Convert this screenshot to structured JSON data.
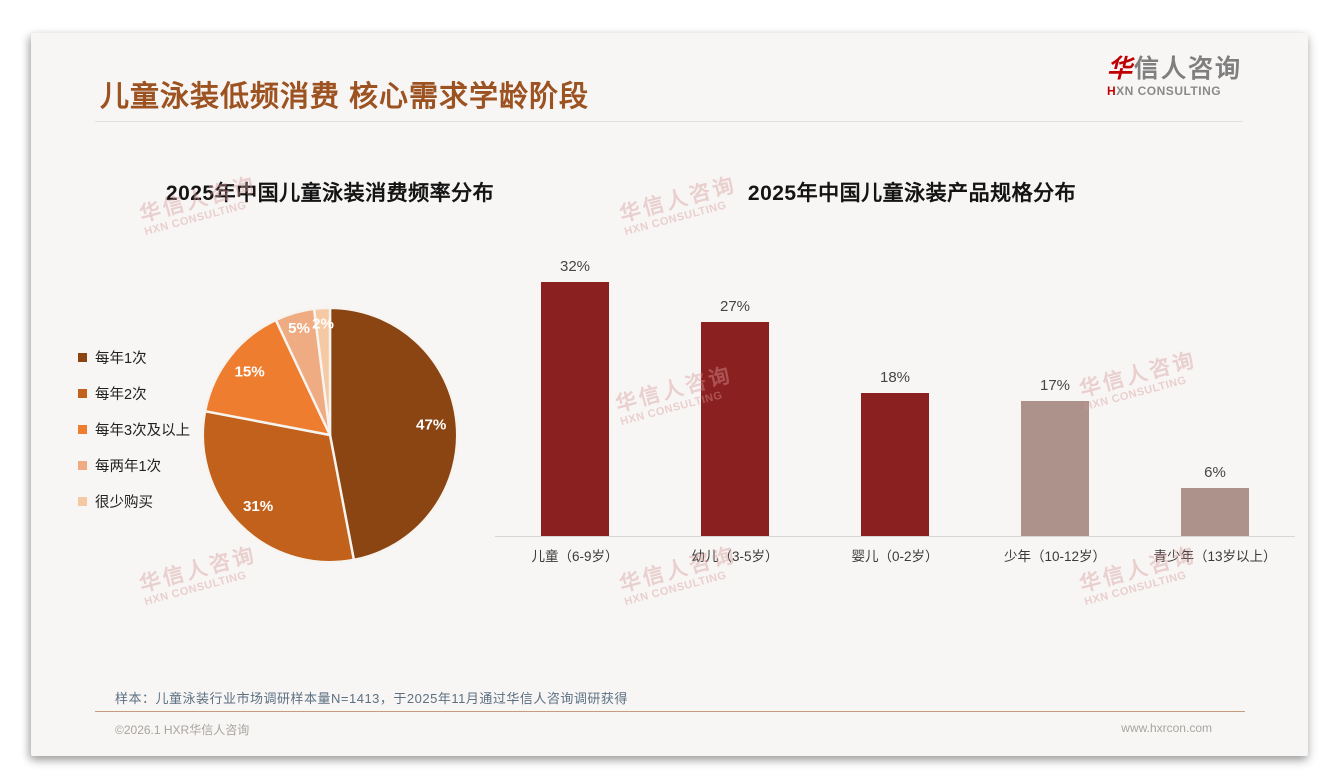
{
  "header": {
    "title": "儿童泳装低频消费 核心需求学龄阶段",
    "logo": {
      "cn_first": "华",
      "cn_rest": "信人咨询",
      "en_first": "H",
      "en_rest": "XN CONSULTING"
    },
    "accent_color": "#C00000"
  },
  "watermark": {
    "line1": "华信人咨询",
    "line2": "HXN CONSULTING"
  },
  "chart_data": [
    {
      "type": "pie",
      "title": "2025年中国儿童泳装消费频率分布",
      "legend_position": "left",
      "slices": [
        {
          "label": "每年1次",
          "value": 47,
          "pct_label": "47%",
          "color": "#8A4513"
        },
        {
          "label": "每年2次",
          "value": 31,
          "pct_label": "31%",
          "color": "#C2611B"
        },
        {
          "label": "每年3次及以上",
          "value": 15,
          "pct_label": "15%",
          "color": "#EE7D2F"
        },
        {
          "label": "每两年1次",
          "value": 5,
          "pct_label": "5%",
          "color": "#EFAB82"
        },
        {
          "label": "很少购买",
          "value": 2,
          "pct_label": "2%",
          "color": "#F4C9A4"
        }
      ]
    },
    {
      "type": "bar",
      "title": "2025年中国儿童泳装产品规格分布",
      "categories": [
        "儿童（6-9岁）",
        "幼儿（3-5岁）",
        "婴儿（0-2岁）",
        "少年（10-12岁）",
        "青少年（13岁以上）"
      ],
      "values": [
        32,
        27,
        18,
        17,
        6
      ],
      "labels": [
        "32%",
        "27%",
        "18%",
        "17%",
        "6%"
      ],
      "bar_colors": [
        "#8B2020",
        "#8B2020",
        "#8B2020",
        "#AD918B",
        "#AD918B"
      ],
      "ylim": [
        0,
        36
      ],
      "grid": false,
      "xlabel": "",
      "ylabel": ""
    }
  ],
  "footnote": "样本：儿童泳装行业市场调研样本量N=1413，于2025年11月通过华信人咨询调研获得",
  "footer": {
    "left": "©2026.1 HXR华信人咨询",
    "right": "www.hxrcon.com"
  }
}
